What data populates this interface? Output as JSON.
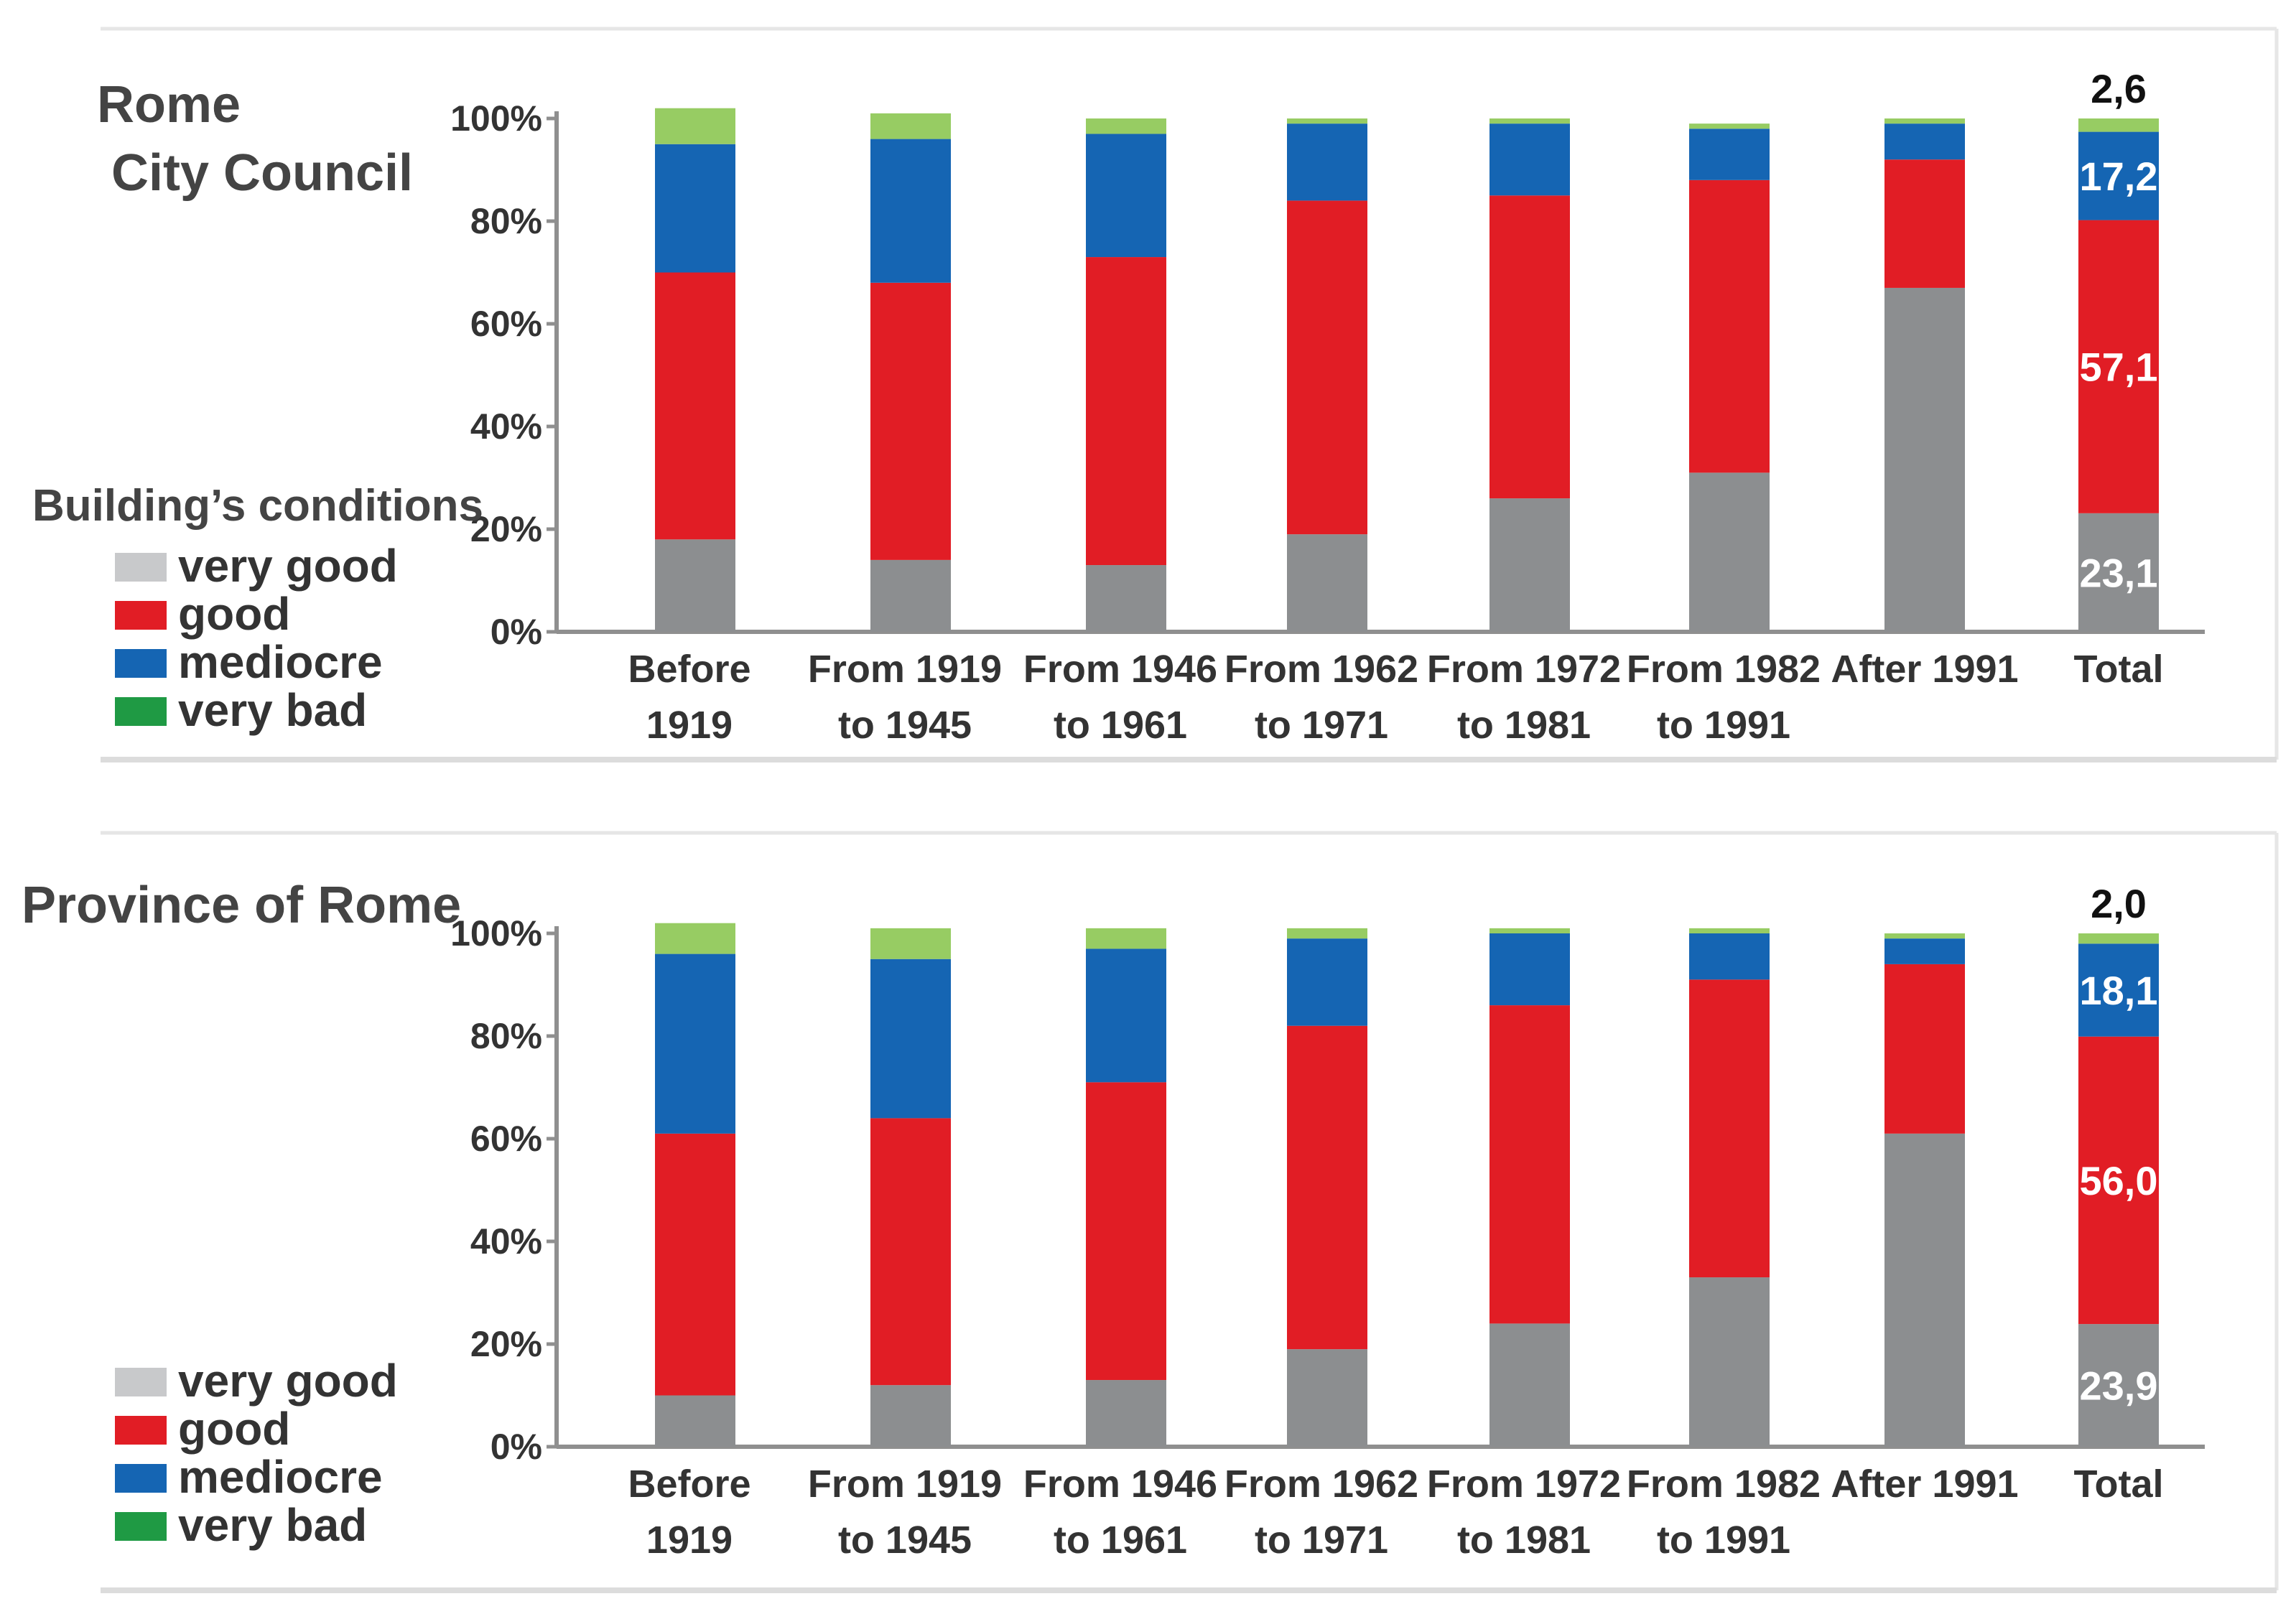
{
  "colors": {
    "very_good": "#8c8e90",
    "good": "#e11d25",
    "mediocre": "#1565b3",
    "very_bad": "#97cc63",
    "legend_very_good": "#c8c9cb",
    "legend_very_bad": "#1f9a44",
    "axis": "#8f8f8f"
  },
  "legend": {
    "title": "Building’s conditions",
    "items": [
      {
        "key": "very_good",
        "label": "very good"
      },
      {
        "key": "good",
        "label": "good"
      },
      {
        "key": "mediocre",
        "label": "mediocre"
      },
      {
        "key": "very_bad",
        "label": "very bad"
      }
    ]
  },
  "chart_data": [
    {
      "type": "bar",
      "stacked": true,
      "title_lines": [
        "Rome",
        "City Council"
      ],
      "ytick_labels": [
        "0%",
        "20%",
        "40%",
        "60%",
        "80%",
        "100%"
      ],
      "ylim": [
        0,
        100
      ],
      "categories": [
        [
          "Before",
          "1919"
        ],
        [
          "From 1919",
          "to 1945"
        ],
        [
          "From 1946",
          "to 1961"
        ],
        [
          "From 1962",
          "to 1971"
        ],
        [
          "From 1972",
          "to 1981"
        ],
        [
          "From 1982",
          "to 1991"
        ],
        [
          "After 1991"
        ],
        [
          "Total"
        ]
      ],
      "series": [
        {
          "key": "very_good",
          "name": "very good",
          "values": [
            18,
            14,
            13,
            19,
            26,
            31,
            67,
            23.1
          ]
        },
        {
          "key": "good",
          "name": "good",
          "values": [
            52,
            54,
            60,
            65,
            59,
            57,
            25,
            57.1
          ]
        },
        {
          "key": "mediocre",
          "name": "mediocre",
          "values": [
            25,
            28,
            24,
            15,
            14,
            10,
            7,
            17.2
          ]
        },
        {
          "key": "very_bad",
          "name": "very bad",
          "values": [
            7,
            5,
            3,
            1,
            1,
            1,
            1,
            2.6
          ]
        }
      ],
      "total_labels": {
        "very_good": "23,1",
        "good": "57,1",
        "mediocre": "17,2",
        "very_bad": "2,6"
      }
    },
    {
      "type": "bar",
      "stacked": true,
      "title_lines": [
        "Province of Rome"
      ],
      "ytick_labels": [
        "0%",
        "20%",
        "40%",
        "60%",
        "80%",
        "100%"
      ],
      "ylim": [
        0,
        100
      ],
      "categories": [
        [
          "Before",
          "1919"
        ],
        [
          "From 1919",
          "to 1945"
        ],
        [
          "From 1946",
          "to 1961"
        ],
        [
          "From 1962",
          "to 1971"
        ],
        [
          "From 1972",
          "to 1981"
        ],
        [
          "From 1982",
          "to 1991"
        ],
        [
          "After 1991"
        ],
        [
          "Total"
        ]
      ],
      "series": [
        {
          "key": "very_good",
          "name": "very good",
          "values": [
            10,
            12,
            13,
            19,
            24,
            33,
            61,
            23.9
          ]
        },
        {
          "key": "good",
          "name": "good",
          "values": [
            51,
            52,
            58,
            63,
            62,
            58,
            33,
            56.0
          ]
        },
        {
          "key": "mediocre",
          "name": "mediocre",
          "values": [
            35,
            31,
            26,
            17,
            14,
            9,
            5,
            18.1
          ]
        },
        {
          "key": "very_bad",
          "name": "very bad",
          "values": [
            6,
            6,
            4,
            2,
            1,
            1,
            1,
            2.0
          ]
        }
      ],
      "total_labels": {
        "very_good": "23,9",
        "good": "56,0",
        "mediocre": "18,1",
        "very_bad": "2,0"
      }
    }
  ]
}
